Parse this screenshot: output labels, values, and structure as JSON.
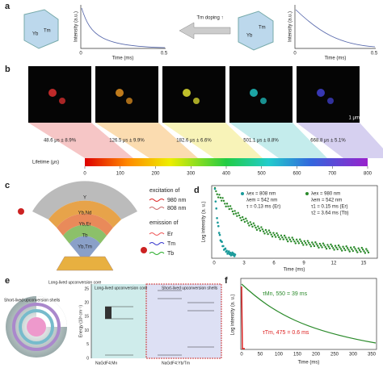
{
  "panels": {
    "a": {
      "label": "a",
      "left_crystal": [
        "Yb",
        "Tm"
      ],
      "right_crystal": [
        "Yb",
        "Tm"
      ],
      "arrow_text": "Tm doping ↑",
      "left_plot": {
        "ylabel": "Intensity (a.u.)",
        "xlabel": "Time (ms)",
        "xticks": [
          0,
          0.5
        ]
      },
      "right_plot": {
        "ylabel": "Intensity (a.u.)",
        "xlabel": "Time (ms)",
        "xticks": [
          0,
          0.5
        ]
      }
    },
    "b": {
      "label": "b",
      "scale_bar": "1 μm",
      "lifetimes": [
        "48.6 μs ± 8.9%",
        "126.5 μs ± 9.9%",
        "182.6 μs ± 6.6%",
        "501.1 μs ± 8.8%",
        "668.8 μs ± 5.1%"
      ],
      "colorbar": {
        "label": "Lifetime (μs)",
        "ticks": [
          0,
          100,
          200,
          300,
          400,
          500,
          600,
          700,
          800
        ]
      }
    },
    "c": {
      "label": "c",
      "shells": [
        "Y",
        "Yb,Nd",
        "Yb,Er",
        "Tb",
        "Yb,Tm"
      ],
      "excitation_title": "excitation of",
      "excitation": [
        "980 nm",
        "808 nm"
      ],
      "emission_title": "emission of",
      "emission": [
        "Er",
        "Tm",
        "Tb"
      ]
    },
    "d": {
      "label": "d",
      "legend_808": [
        "λex = 808 nm",
        "λem = 542 nm",
        "τ = 0.13 ms (Er)"
      ],
      "legend_980": [
        "λex = 980 nm",
        "λem = 542 nm",
        "τ1 = 0.15 ms (Er)",
        "τ2 = 3.64 ms (Tb)"
      ],
      "ylabel": "Log intensity (a. u.)",
      "xlabel": "Time (ms)",
      "xticks": [
        0,
        3,
        6,
        9,
        12,
        15
      ]
    },
    "e": {
      "label": "e",
      "sphere_core": "Long-lived upconversion core",
      "sphere_shells": "Short-lived upconversion shells",
      "ylabel": "Energy (10³ cm⁻¹)",
      "yticks": [
        0,
        5,
        10,
        15,
        20,
        25
      ],
      "core_title": "Long-lived upconversion core",
      "shell_title": "Short-lived upconversion shells",
      "core_material": "NaGdF4:Mn",
      "shell_material": "NaGdF4:Yb/Tm"
    },
    "f": {
      "label": "f",
      "annot_mn": "τMn, 550 = 39 ms",
      "annot_tm": "τTm, 475 = 0.6 ms",
      "ylabel": "Log intensity (a. u.)",
      "xlabel": "Time (ms)",
      "xticks": [
        0,
        50,
        100,
        150,
        200,
        250,
        300,
        350
      ]
    }
  }
}
